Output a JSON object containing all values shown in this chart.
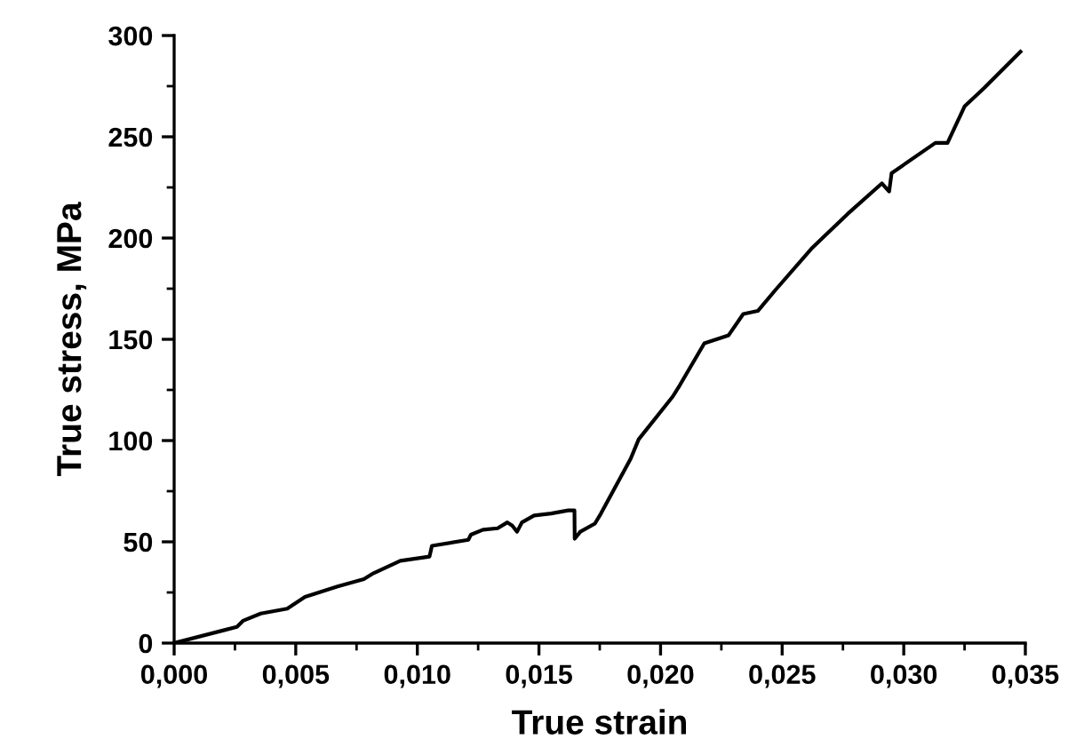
{
  "chart_data": {
    "type": "line",
    "xlabel": "True strain",
    "ylabel": "True stress, MPa",
    "series": [
      {
        "color": "#000000",
        "x": [
          0,
          0.00258,
          0.00283,
          0.00356,
          0.00465,
          0.00538,
          0.00672,
          0.0078,
          0.0082,
          0.0093,
          0.0105,
          0.0106,
          0.0121,
          0.0122,
          0.0127,
          0.0133,
          0.0137,
          0.0139,
          0.0141,
          0.0143,
          0.0148,
          0.0155,
          0.0162,
          0.01646,
          0.01647,
          0.0167,
          0.0173,
          0.01755,
          0.01877,
          0.0191,
          0.0205,
          0.0208,
          0.0218,
          0.0228,
          0.0234,
          0.024,
          0.0247,
          0.0262,
          0.0277,
          0.0291,
          0.0294,
          0.0295,
          0.0313,
          0.0318,
          0.0325,
          0.0333,
          0.0348
        ],
        "values": [
          0,
          8,
          11,
          14.6,
          17,
          22.8,
          28,
          31.6,
          34.5,
          40.6,
          42.7,
          48,
          51,
          53.5,
          56,
          56.7,
          59.6,
          58,
          55,
          59.6,
          63,
          64,
          65.5,
          65.5,
          51.5,
          55,
          59,
          64,
          91,
          100.6,
          121.7,
          127.5,
          148,
          152,
          162.5,
          164,
          174,
          194.7,
          212,
          227,
          223,
          232,
          247,
          247,
          265,
          274,
          292
        ]
      }
    ],
    "xlim": [
      0,
      0.035
    ],
    "xticks": [
      {
        "value": 0,
        "label": "0,000"
      },
      {
        "value": 0.005,
        "label": "0,005"
      },
      {
        "value": 0.01,
        "label": "0,010"
      },
      {
        "value": 0.015,
        "label": "0,015"
      },
      {
        "value": 0.02,
        "label": "0,020"
      },
      {
        "value": 0.025,
        "label": "0,025"
      },
      {
        "value": 0.03,
        "label": "0,030"
      },
      {
        "value": 0.035,
        "label": "0,035"
      }
    ],
    "ylim": [
      0,
      300
    ],
    "yticks": [
      0,
      50,
      100,
      150,
      200,
      250,
      300
    ],
    "grid": false,
    "legend": false,
    "marker": "none",
    "line_style": "solid"
  }
}
